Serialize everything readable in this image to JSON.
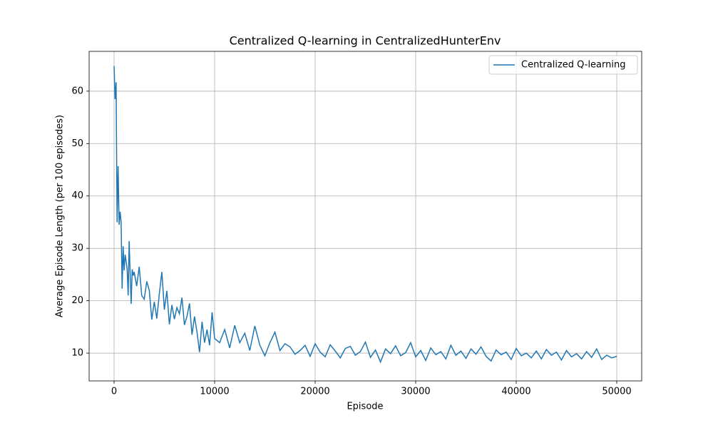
{
  "chart_data": {
    "type": "line",
    "title": "Centralized Q-learning in CentralizedHunterEnv",
    "xlabel": "Episode",
    "ylabel": "Average Episode Length (per 100 episodes)",
    "x": [
      0,
      100,
      200,
      300,
      400,
      500,
      600,
      700,
      800,
      900,
      1000,
      1100,
      1200,
      1300,
      1400,
      1500,
      1600,
      1700,
      1800,
      1900,
      2000,
      2250,
      2500,
      2750,
      3000,
      3250,
      3500,
      3750,
      4000,
      4250,
      4500,
      4750,
      5000,
      5250,
      5500,
      5750,
      6000,
      6250,
      6500,
      6750,
      7000,
      7250,
      7500,
      7750,
      8000,
      8250,
      8500,
      8750,
      9000,
      9250,
      9500,
      9750,
      10000,
      10500,
      11000,
      11500,
      12000,
      12500,
      13000,
      13500,
      14000,
      14500,
      15000,
      15500,
      16000,
      16500,
      17000,
      17500,
      18000,
      18500,
      19000,
      19500,
      20000,
      20500,
      21000,
      21500,
      22000,
      22500,
      23000,
      23500,
      24000,
      24500,
      25000,
      25500,
      26000,
      26500,
      27000,
      27500,
      28000,
      28500,
      29000,
      29500,
      30000,
      30500,
      31000,
      31500,
      32000,
      32500,
      33000,
      33500,
      34000,
      34500,
      35000,
      35500,
      36000,
      36500,
      37000,
      37500,
      38000,
      38500,
      39000,
      39500,
      40000,
      40500,
      41000,
      41500,
      42000,
      42500,
      43000,
      43500,
      44000,
      44500,
      45000,
      45500,
      46000,
      46500,
      47000,
      47500,
      48000,
      48500,
      49000,
      49500,
      50000
    ],
    "series": [
      {
        "name": "Centralized Q-learning",
        "color": "#1f77b4",
        "values": [
          64.8,
          58.5,
          61.7,
          35,
          45.7,
          34.5,
          37,
          35,
          22.3,
          30.4,
          25.8,
          28.8,
          27.5,
          26,
          21,
          31.4,
          25,
          19.4,
          26,
          24.8,
          25.5,
          22.8,
          26.5,
          21,
          20.3,
          23.7,
          22,
          16.4,
          19.8,
          16.6,
          21.3,
          25.5,
          18.3,
          21.9,
          15.5,
          19.2,
          16.5,
          18.7,
          17.5,
          20.6,
          15.4,
          17,
          19.5,
          13.5,
          17,
          14,
          10.2,
          16,
          12,
          14.5,
          11.5,
          17.8,
          12.8,
          12,
          14.5,
          11,
          15.3,
          12,
          13.8,
          10.5,
          15.2,
          11.5,
          9.5,
          12,
          14,
          10.5,
          11.8,
          11.2,
          9.8,
          10.5,
          11.5,
          9.4,
          11.8,
          10.2,
          9.3,
          11.6,
          10.4,
          9.1,
          10.9,
          11.3,
          9.6,
          10.3,
          12.1,
          9.2,
          10.6,
          8.3,
          10.8,
          9.9,
          11.4,
          9.5,
          10.1,
          12,
          9.3,
          10.5,
          8.6,
          11,
          9.7,
          10.3,
          8.9,
          11.5,
          9.6,
          10.4,
          9.0,
          10.8,
          9.8,
          11.2,
          9.4,
          8.5,
          10.6,
          9.7,
          10.2,
          8.8,
          10.9,
          9.5,
          10,
          9.1,
          10.4,
          8.9,
          10.7,
          9.6,
          10.2,
          8.7,
          10.5,
          9.3,
          9.9,
          8.9,
          10.3,
          9.2,
          10.8,
          8.8,
          9.6,
          9.1,
          9.4
        ]
      }
    ],
    "xlim": [
      -2482,
      52482
    ],
    "xticks": [
      0,
      10000,
      20000,
      30000,
      40000,
      50000
    ],
    "ylim": [
      4.7,
      67.6
    ],
    "yticks": [
      10,
      20,
      30,
      40,
      50,
      60
    ],
    "grid": true,
    "legend": "upper right"
  }
}
